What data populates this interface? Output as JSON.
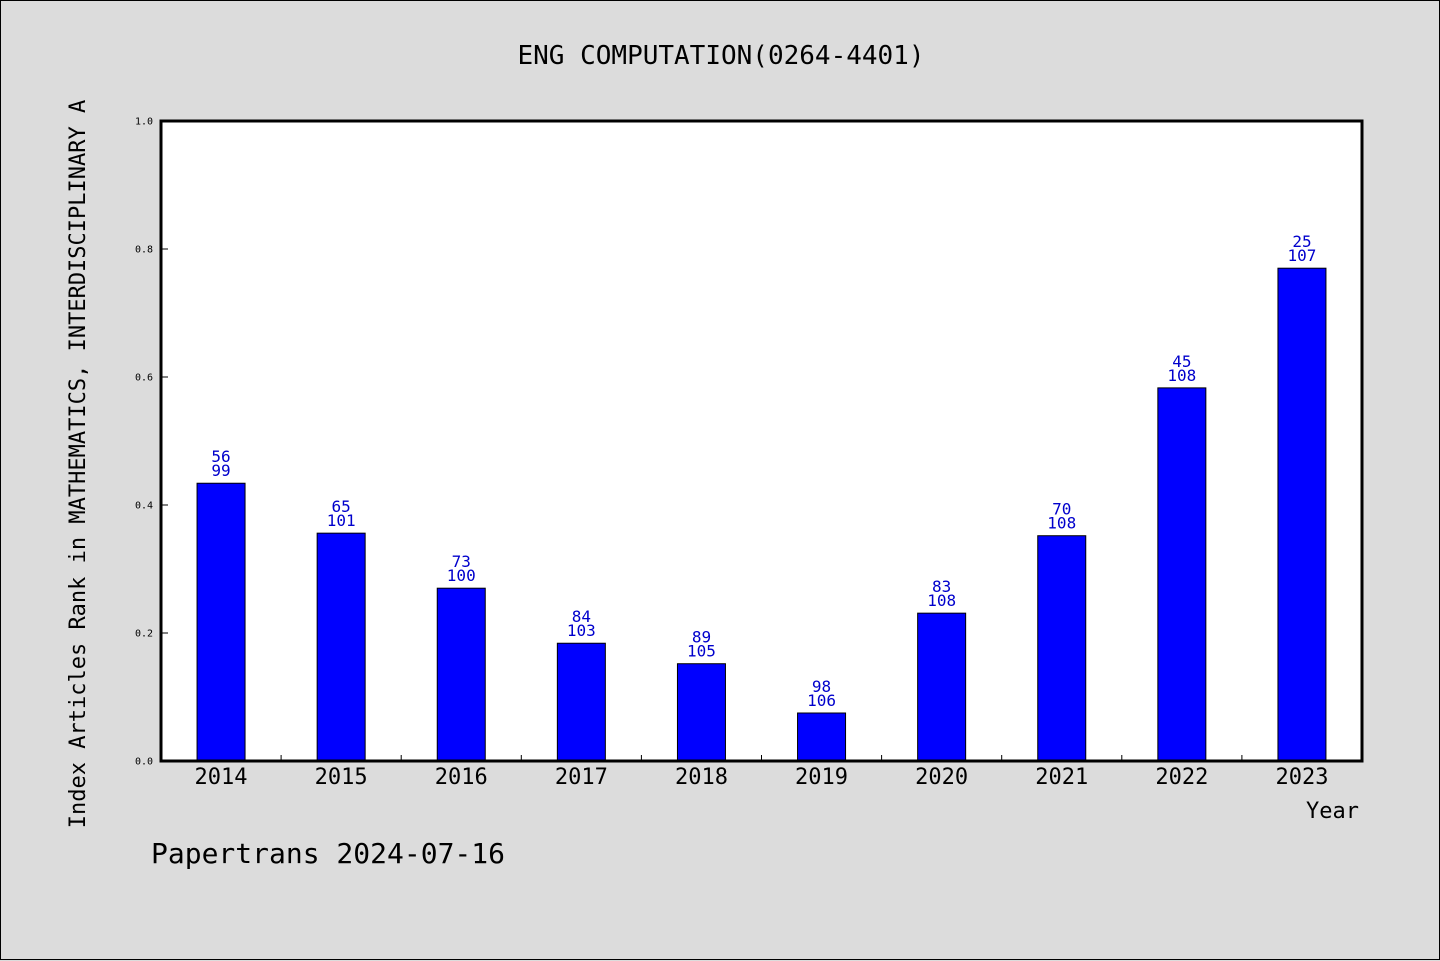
{
  "chart_data": {
    "type": "bar",
    "title": "ENG COMPUTATION(0264-4401)",
    "xlabel": "Year",
    "ylabel": "Index Articles Rank in MATHEMATICS, INTERDISCIPLINARY A",
    "ylim": [
      0,
      1.0
    ],
    "yticks": [
      "0.0",
      "0.2",
      "0.4",
      "0.6",
      "0.8",
      "1.0"
    ],
    "categories": [
      "2014",
      "2015",
      "2016",
      "2017",
      "2018",
      "2019",
      "2020",
      "2021",
      "2022",
      "2023"
    ],
    "values": [
      0.434,
      0.356,
      0.27,
      0.184,
      0.152,
      0.075,
      0.231,
      0.352,
      0.583,
      0.77
    ],
    "rank": [
      "56",
      "65",
      "73",
      "84",
      "89",
      "98",
      "83",
      "70",
      "45",
      "25"
    ],
    "total": [
      "99",
      "101",
      "100",
      "103",
      "105",
      "106",
      "108",
      "108",
      "108",
      "107"
    ],
    "bar_color": "#0000ff",
    "label_color": "#0000cc",
    "grid": false,
    "legend": "none"
  },
  "footer": "Papertrans 2024-07-16"
}
